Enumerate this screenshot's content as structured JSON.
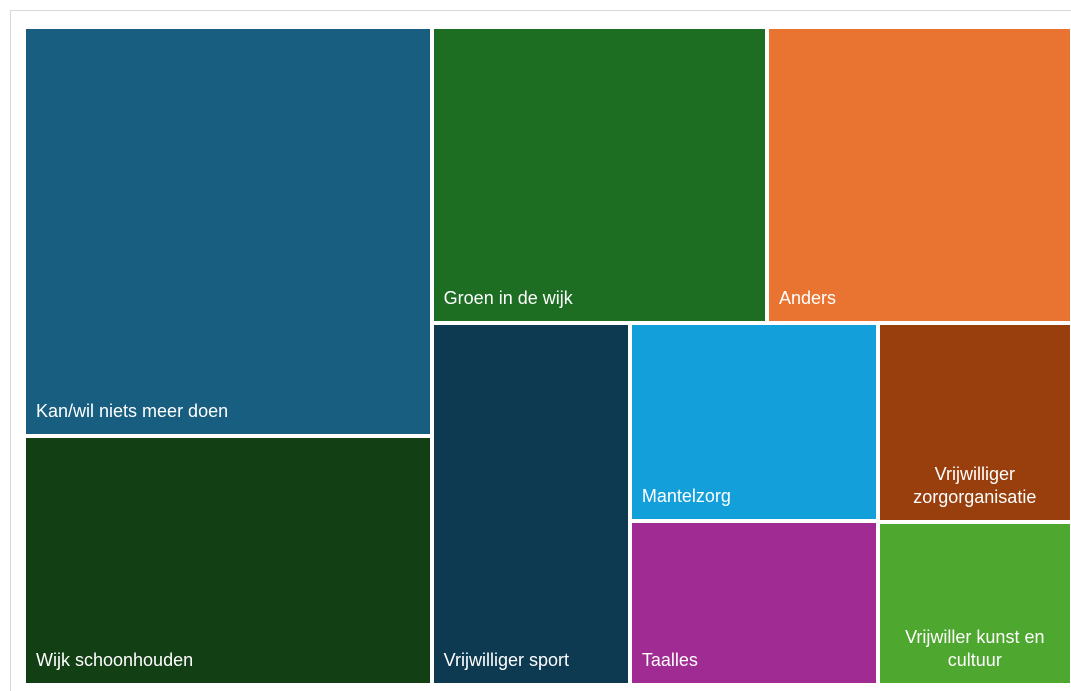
{
  "chart_data": {
    "type": "treemap",
    "categories": [
      "Kan/wil niets meer doen",
      "Wijk schoonhouden",
      "Groen in de wijk",
      "Anders",
      "Vrijwilliger sport",
      "Mantelzorg",
      "Taalles",
      "Vrijwilliger zorgorganisatie",
      "Vrijwiller kunst en cultuur"
    ],
    "values": [
      24.2,
      14.7,
      14.4,
      13.1,
      10.4,
      7.1,
      5.9,
      5.6,
      4.6
    ],
    "colors": [
      "#175e80",
      "#133f15",
      "#1d6d23",
      "#e97432",
      "#0e3a51",
      "#139fd9",
      "#a02b93",
      "#983f0d",
      "#4ea72e"
    ]
  }
}
